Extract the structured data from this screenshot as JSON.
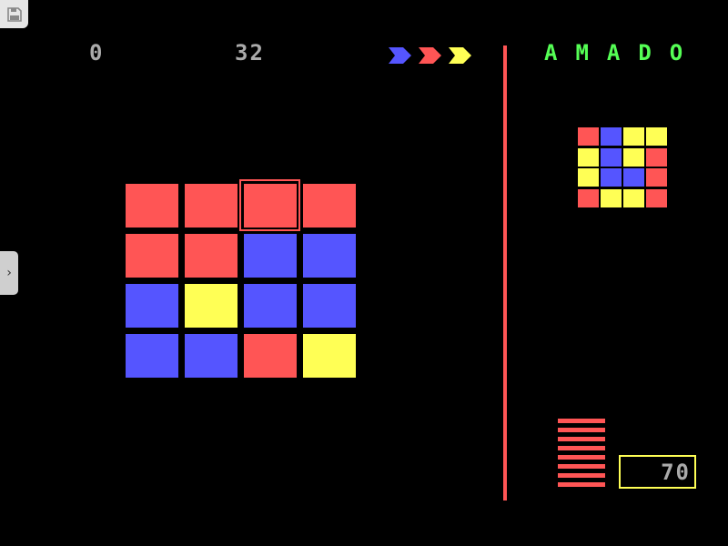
{
  "score_left": "0",
  "score_mid": "32",
  "title": "AMADO",
  "counter": "70",
  "colors": {
    "red": "#ff5555",
    "blue": "#5555ff",
    "yellow": "#ffff55",
    "green": "#55ff55",
    "gray": "#aaaaaa"
  },
  "arrows": [
    "blue",
    "red",
    "yellow"
  ],
  "board": [
    [
      "red",
      "red",
      "red",
      "red"
    ],
    [
      "red",
      "red",
      "blue",
      "blue"
    ],
    [
      "blue",
      "yellow",
      "blue",
      "blue"
    ],
    [
      "blue",
      "blue",
      "red",
      "yellow"
    ]
  ],
  "selected": {
    "row": 0,
    "col": 2
  },
  "target": [
    [
      "red",
      "blue",
      "yellow",
      "yellow"
    ],
    [
      "yellow",
      "blue",
      "yellow",
      "red"
    ],
    [
      "yellow",
      "blue",
      "blue",
      "red"
    ],
    [
      "red",
      "yellow",
      "yellow",
      "red"
    ]
  ],
  "time_bars": 8,
  "icons": {
    "save": "floppy-disk-icon",
    "side": "chevron-right-icon"
  }
}
